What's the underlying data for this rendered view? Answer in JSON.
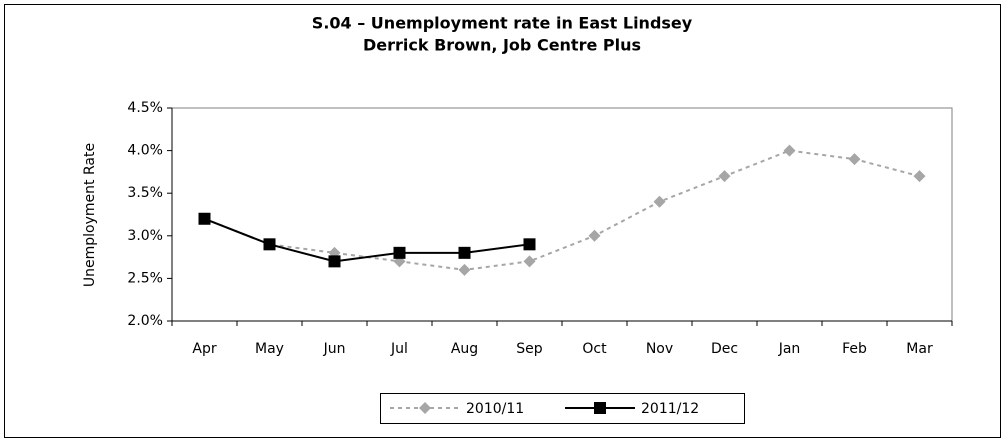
{
  "chart_data": {
    "type": "line",
    "title": "S.04 – Unemployment rate in East Lindsey",
    "subtitle": "Derrick Brown, Job Centre Plus",
    "y_label": "Unemployment Rate",
    "categories": [
      "Apr",
      "May",
      "Jun",
      "Jul",
      "Aug",
      "Sep",
      "Oct",
      "Nov",
      "Dec",
      "Jan",
      "Feb",
      "Mar"
    ],
    "series": [
      {
        "name": "2010/11",
        "color": "#a6a6a6",
        "dashed": true,
        "marker": "diamond",
        "values": [
          3.2,
          2.9,
          2.8,
          2.7,
          2.6,
          2.7,
          3.0,
          3.4,
          3.7,
          4.0,
          3.9,
          3.7
        ]
      },
      {
        "name": "2011/12",
        "color": "#000000",
        "dashed": false,
        "marker": "square",
        "values": [
          3.2,
          2.9,
          2.7,
          2.8,
          2.8,
          2.9,
          null,
          null,
          null,
          null,
          null,
          null
        ]
      }
    ],
    "ylim": [
      2.0,
      4.5
    ],
    "yticks": [
      {
        "value": 2.0,
        "label": "2.0%"
      },
      {
        "value": 2.5,
        "label": "2.5%"
      },
      {
        "value": 3.0,
        "label": "3.0%"
      },
      {
        "value": 3.5,
        "label": "3.5%"
      },
      {
        "value": 4.0,
        "label": "4.0%"
      },
      {
        "value": 4.5,
        "label": "4.5%"
      }
    ],
    "grid": false,
    "legend": "bottom"
  }
}
